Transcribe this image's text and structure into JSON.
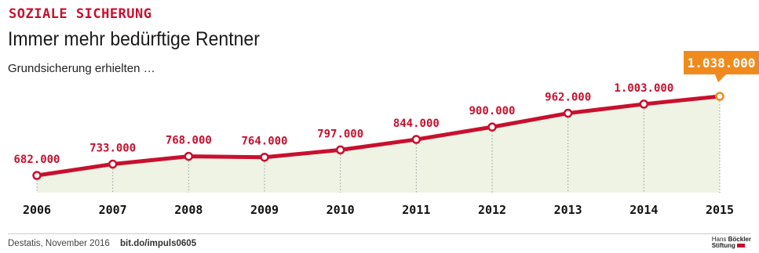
{
  "header": {
    "kicker": "SOZIALE SICHERUNG",
    "title": "Immer mehr bedürftige Rentner",
    "subtitle": "Grundsicherung erhielten …"
  },
  "footer": {
    "source": "Destatis, November 2016",
    "link": "bit.do/impuls0605",
    "logo_line1_light": "Hans",
    "logo_line1_bold": "Böckler",
    "logo_line2": "Stiftung"
  },
  "colors": {
    "accent": "#c8102e",
    "highlight": "#f08a1c",
    "area_fill": "#eef3e4"
  },
  "chart_data": {
    "type": "line",
    "title": "Immer mehr bedürftige Rentner",
    "subtitle": "Grundsicherung erhielten …",
    "categories": [
      "2006",
      "2007",
      "2008",
      "2009",
      "2010",
      "2011",
      "2012",
      "2013",
      "2014",
      "2015"
    ],
    "values": [
      682000,
      733000,
      768000,
      764000,
      797000,
      844000,
      900000,
      962000,
      1003000,
      1038000
    ],
    "labels": [
      "682.000",
      "733.000",
      "768.000",
      "764.000",
      "797.000",
      "844.000",
      "900.000",
      "962.000",
      "1.003.000",
      "1.038.000"
    ],
    "highlight_index": 9,
    "area_fill": true,
    "grid": false,
    "legend": "none"
  }
}
